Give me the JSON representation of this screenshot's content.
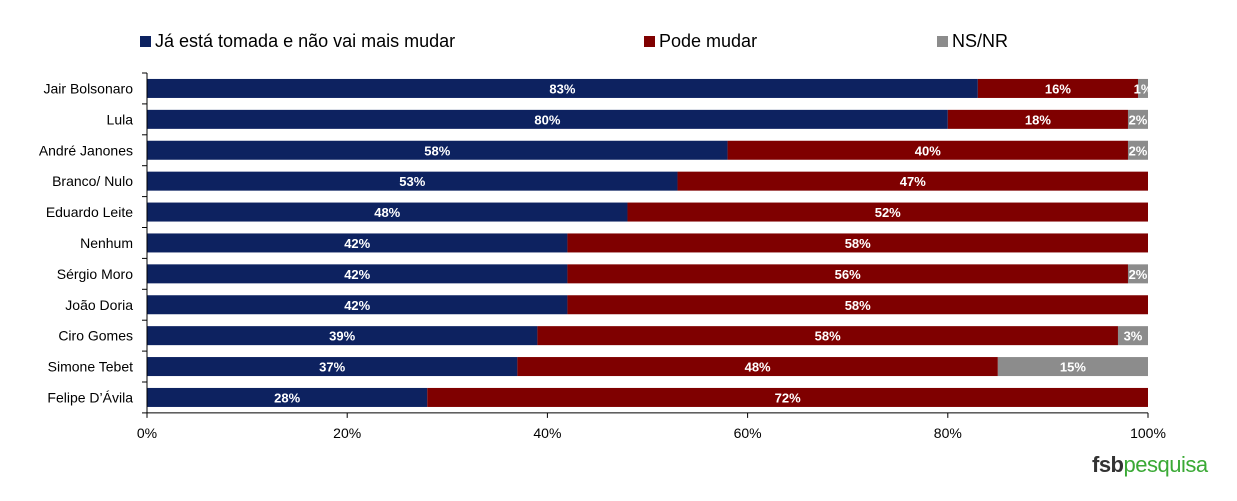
{
  "colors": {
    "tomada": "#0d2260",
    "pode_mudar": "#7f0000",
    "nsnr": "#8c8c8c"
  },
  "logo": {
    "part1": "fsb",
    "part2": "pesquisa"
  },
  "chart_data": {
    "type": "bar",
    "orientation": "horizontal",
    "stacked": true,
    "categories": [
      "Jair Bolsonaro",
      "Lula",
      "André Janones",
      "Branco/ Nulo",
      "Eduardo Leite",
      "Nenhum",
      "Sérgio Moro",
      "João Doria",
      "Ciro Gomes",
      "Simone Tebet",
      "Felipe D’Ávila"
    ],
    "series": [
      {
        "name": "Já está tomada e não vai mais mudar",
        "color": "#0d2260",
        "values": [
          83,
          80,
          58,
          53,
          48,
          42,
          42,
          42,
          39,
          37,
          28
        ]
      },
      {
        "name": "Pode mudar",
        "color": "#7f0000",
        "values": [
          16,
          18,
          40,
          47,
          52,
          58,
          56,
          58,
          58,
          48,
          72
        ]
      },
      {
        "name": "NS/NR",
        "color": "#8c8c8c",
        "values": [
          1,
          2,
          2,
          0,
          0,
          0,
          2,
          0,
          3,
          15,
          0
        ]
      }
    ],
    "xlim": [
      0,
      100
    ],
    "xticks": [
      "0%",
      "20%",
      "40%",
      "60%",
      "80%",
      "100%"
    ],
    "legend_position": "top",
    "grid": false
  }
}
